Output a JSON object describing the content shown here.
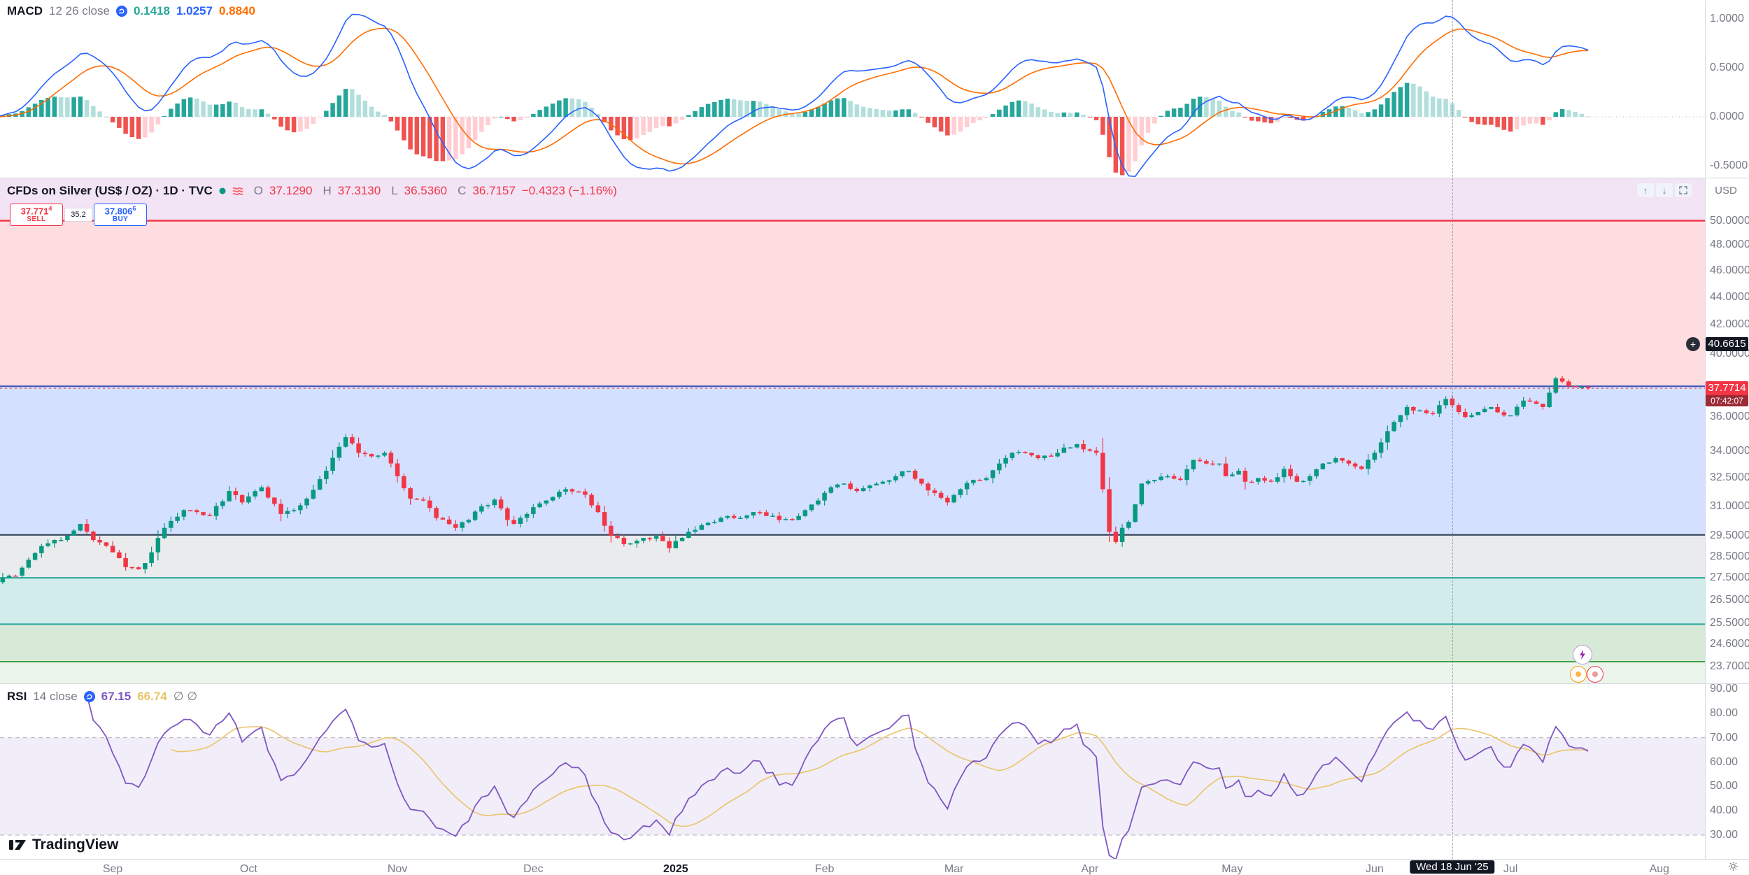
{
  "colors": {
    "up": "#089981",
    "down": "#f23645",
    "macd_line": "#2962ff",
    "signal_line": "#ff6d00",
    "hist_pos_rise": "#26a69a",
    "hist_pos_fall": "#b2dfdb",
    "hist_neg_rise": "#ffcdd2",
    "hist_neg_fall": "#ef5350",
    "rsi_line": "#7e57c2",
    "rsi_ma": "#e9c46a",
    "rsi_band_fill": "rgba(126,87,194,0.10)",
    "axis_text": "#787b86",
    "tag_dark": "#131722",
    "tag_red": "#f23645"
  },
  "icons": {
    "alert_plus": "+",
    "pane_up": "↑",
    "pane_down": "↓"
  },
  "macd_panel": {
    "title": "MACD",
    "params": "12 26 close",
    "hist_value": "0.1418",
    "macd_value": "1.0257",
    "signal_value": "0.8840",
    "axis_ticks": [
      {
        "label": "1.0000",
        "v": 1.0
      },
      {
        "label": "0.5000",
        "v": 0.5
      },
      {
        "label": "0.0000",
        "v": 0.0
      },
      {
        "label": "-0.5000",
        "v": -0.5
      }
    ]
  },
  "main_panel": {
    "legend": {
      "symbol": "CFDs on Silver (US$ / OZ) · 1D · TVC",
      "o_label": "O",
      "o": "37.1290",
      "h_label": "H",
      "h": "37.3130",
      "l_label": "L",
      "l": "36.5360",
      "c_label": "C",
      "c": "36.7157",
      "change": "−0.4323 (−1.16%)"
    },
    "trade": {
      "sell_price": "37.771",
      "sell_frac": "4",
      "sell_label": "SELL",
      "spread": "35.2",
      "buy_price": "37.806",
      "buy_frac": "6",
      "buy_label": "BUY"
    },
    "axis": {
      "currency": "USD",
      "ticks": [
        {
          "label": "50.0000",
          "p": 50.0
        },
        {
          "label": "48.0000",
          "p": 48.0
        },
        {
          "label": "46.0000",
          "p": 46.0
        },
        {
          "label": "44.0000",
          "p": 44.0
        },
        {
          "label": "42.0000",
          "p": 42.0
        },
        {
          "label": "40.0000",
          "p": 40.0
        },
        {
          "label": "36.0000",
          "p": 36.0
        },
        {
          "label": "34.0000",
          "p": 34.0
        },
        {
          "label": "32.5000",
          "p": 32.5
        },
        {
          "label": "31.0000",
          "p": 31.0
        },
        {
          "label": "29.5000",
          "p": 29.5
        },
        {
          "label": "28.5000",
          "p": 28.5
        },
        {
          "label": "27.5000",
          "p": 27.5
        },
        {
          "label": "26.5000",
          "p": 26.5
        },
        {
          "label": "25.5000",
          "p": 25.5
        },
        {
          "label": "24.6000",
          "p": 24.6
        },
        {
          "label": "23.7000",
          "p": 23.7
        }
      ],
      "alert_tag": "40.6615",
      "last_price_tag": "37.7714",
      "countdown": "07:42:07"
    }
  },
  "rsi_panel": {
    "title": "RSI",
    "params": "14 close",
    "rsi_value": "67.15",
    "ma_value": "66.74",
    "disabled": "∅ ∅",
    "axis_ticks": [
      {
        "label": "90.00",
        "v": 90
      },
      {
        "label": "80.00",
        "v": 80
      },
      {
        "label": "70.00",
        "v": 70
      },
      {
        "label": "60.00",
        "v": 60
      },
      {
        "label": "50.00",
        "v": 50
      },
      {
        "label": "40.00",
        "v": 40
      },
      {
        "label": "30.00",
        "v": 30
      }
    ]
  },
  "time_axis": {
    "crosshair_label": "Wed 18 Jun '25",
    "months": [
      {
        "label": "Sep",
        "i": 18
      },
      {
        "label": "Oct",
        "i": 39
      },
      {
        "label": "Nov",
        "i": 62
      },
      {
        "label": "Dec",
        "i": 83
      },
      {
        "label": "2025",
        "i": 105,
        "year": true
      },
      {
        "label": "Feb",
        "i": 128
      },
      {
        "label": "Mar",
        "i": 148
      },
      {
        "label": "Apr",
        "i": 169
      },
      {
        "label": "May",
        "i": 191
      },
      {
        "label": "Jun",
        "i": 213
      },
      {
        "label": "Jul",
        "i": 234
      },
      {
        "label": "Aug",
        "i": 257
      }
    ]
  },
  "watermark": "TradingView",
  "chart_data": {
    "type": "candlestick",
    "symbol": "CFDs on Silver (US$ / OZ)",
    "exchange": "TVC",
    "interval": "1D",
    "scale": "log",
    "last_index": 246,
    "crosshair_index": 225,
    "highlight_bar": {
      "index": 225,
      "o": 37.129,
      "h": 37.313,
      "l": 36.536,
      "c": 36.7157
    },
    "last_price": 37.7714,
    "alert_price": 40.6615,
    "close_anchors": [
      [
        0,
        27.3
      ],
      [
        3,
        27.6
      ],
      [
        7,
        29.0
      ],
      [
        10,
        29.3
      ],
      [
        13,
        30.1
      ],
      [
        15,
        29.3
      ],
      [
        18,
        28.7
      ],
      [
        20,
        28.0
      ],
      [
        22,
        27.9
      ],
      [
        24,
        28.7
      ],
      [
        26,
        29.9
      ],
      [
        29,
        30.8
      ],
      [
        31,
        30.7
      ],
      [
        33,
        30.5
      ],
      [
        36,
        31.8
      ],
      [
        38,
        31.2
      ],
      [
        41,
        32.0
      ],
      [
        44,
        30.6
      ],
      [
        46,
        30.8
      ],
      [
        48,
        31.4
      ],
      [
        51,
        32.9
      ],
      [
        54,
        34.8
      ],
      [
        56,
        33.9
      ],
      [
        58,
        33.7
      ],
      [
        60,
        33.9
      ],
      [
        62,
        32.6
      ],
      [
        64,
        31.4
      ],
      [
        66,
        31.3
      ],
      [
        68,
        30.4
      ],
      [
        71,
        29.9
      ],
      [
        73,
        30.3
      ],
      [
        75,
        31.0
      ],
      [
        77,
        31.35
      ],
      [
        79,
        30.3
      ],
      [
        80,
        30.1
      ],
      [
        82,
        30.6
      ],
      [
        85,
        31.3
      ],
      [
        88,
        31.9
      ],
      [
        91,
        31.6
      ],
      [
        93,
        30.7
      ],
      [
        95,
        29.5
      ],
      [
        97,
        29.1
      ],
      [
        100,
        29.4
      ],
      [
        102,
        29.5
      ],
      [
        104,
        28.9
      ],
      [
        106,
        29.4
      ],
      [
        108,
        29.8
      ],
      [
        111,
        30.2
      ],
      [
        113,
        30.5
      ],
      [
        115,
        30.4
      ],
      [
        117,
        30.7
      ],
      [
        119,
        30.5
      ],
      [
        121,
        30.3
      ],
      [
        123,
        30.3
      ],
      [
        125,
        30.8
      ],
      [
        127,
        31.3
      ],
      [
        129,
        32.0
      ],
      [
        131,
        32.2
      ],
      [
        133,
        31.8
      ],
      [
        135,
        32.1
      ],
      [
        137,
        32.3
      ],
      [
        139,
        32.6
      ],
      [
        141,
        32.9
      ],
      [
        143,
        32.2
      ],
      [
        145,
        31.7
      ],
      [
        147,
        31.2
      ],
      [
        149,
        31.9
      ],
      [
        151,
        32.4
      ],
      [
        153,
        32.5
      ],
      [
        155,
        33.3
      ],
      [
        157,
        33.9
      ],
      [
        159,
        33.9
      ],
      [
        161,
        33.6
      ],
      [
        163,
        33.7
      ],
      [
        165,
        34.2
      ],
      [
        167,
        34.4
      ],
      [
        168,
        34.1
      ],
      [
        170,
        33.9
      ],
      [
        171,
        31.9
      ],
      [
        172,
        29.7
      ],
      [
        173,
        29.2
      ],
      [
        174,
        29.9
      ],
      [
        175,
        30.2
      ],
      [
        176,
        31.1
      ],
      [
        177,
        32.2
      ],
      [
        179,
        32.4
      ],
      [
        181,
        32.6
      ],
      [
        183,
        32.4
      ],
      [
        185,
        33.5
      ],
      [
        187,
        33.3
      ],
      [
        189,
        33.3
      ],
      [
        190,
        32.6
      ],
      [
        192,
        32.9
      ],
      [
        193,
        32.3
      ],
      [
        195,
        32.5
      ],
      [
        197,
        32.3
      ],
      [
        199,
        33.0
      ],
      [
        201,
        32.3
      ],
      [
        203,
        32.6
      ],
      [
        205,
        33.3
      ],
      [
        207,
        33.6
      ],
      [
        209,
        33.3
      ],
      [
        211,
        33.0
      ],
      [
        213,
        33.9
      ],
      [
        214,
        34.5
      ],
      [
        216,
        35.7
      ],
      [
        218,
        36.6
      ],
      [
        220,
        36.4
      ],
      [
        222,
        36.2
      ],
      [
        224,
        37.1
      ],
      [
        225,
        36.72
      ],
      [
        226,
        36.3
      ],
      [
        227,
        36.0
      ],
      [
        229,
        36.3
      ],
      [
        231,
        36.6
      ],
      [
        233,
        36.1
      ],
      [
        234,
        36.1
      ],
      [
        236,
        37.0
      ],
      [
        238,
        36.8
      ],
      [
        239,
        36.6
      ],
      [
        241,
        38.4
      ],
      [
        242,
        38.2
      ],
      [
        243,
        37.9
      ],
      [
        245,
        37.85
      ],
      [
        246,
        37.77
      ]
    ],
    "zones": [
      {
        "p1": null,
        "p2": 50.0,
        "fill": "rgba(155,39,176,0.13)"
      },
      {
        "p1": 50.0,
        "p2": 37.9,
        "fill": "rgba(242,54,69,0.17)"
      },
      {
        "p1": 37.9,
        "p2": 29.55,
        "fill": "rgba(41,98,255,0.20)"
      },
      {
        "p1": 29.55,
        "p2": 27.5,
        "fill": "rgba(105,110,125,0.14)"
      },
      {
        "p1": 27.5,
        "p2": 25.45,
        "fill": "rgba(0,150,136,0.18)"
      },
      {
        "p1": 25.45,
        "p2": 23.9,
        "fill": "rgba(67,160,71,0.22)"
      },
      {
        "p1": 23.9,
        "p2": null,
        "fill": "rgba(67,160,71,0.10)"
      }
    ],
    "levels": [
      {
        "price": 50.0,
        "color": "#f23645",
        "w": 2.5
      },
      {
        "price": 37.9,
        "color": "#3f51b5",
        "w": 2
      },
      {
        "price": 29.55,
        "color": "#2a3950",
        "w": 2
      },
      {
        "price": 27.5,
        "color": "#26a69a",
        "w": 2
      },
      {
        "price": 25.45,
        "color": "#26a69a",
        "w": 2
      },
      {
        "price": 23.9,
        "color": "#43a047",
        "w": 2
      }
    ],
    "macd": {
      "fast": 12,
      "slow": 26,
      "signal": 9
    },
    "rsi": {
      "length": 14,
      "ma_length": 14,
      "band": [
        30,
        70
      ]
    }
  }
}
